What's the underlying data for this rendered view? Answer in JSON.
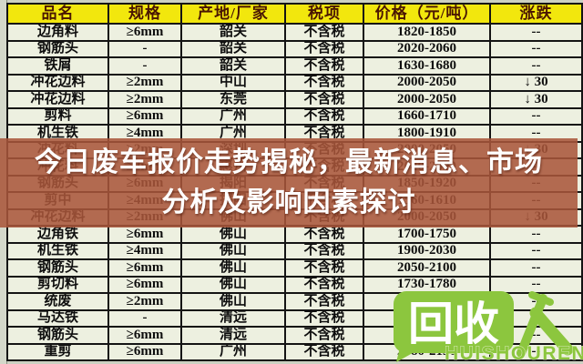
{
  "table": {
    "headers": [
      "品名",
      "规格",
      "产地/厂家",
      "税项",
      "价格（元/吨）",
      "涨跌"
    ],
    "rows": [
      [
        "边角料",
        "≥6mm",
        "韶关",
        "不含税",
        "1820-1850",
        "--"
      ],
      [
        "钢筋头",
        "-",
        "韶关",
        "不含税",
        "2020-2060",
        "--"
      ],
      [
        "铁屑",
        "-",
        "韶关",
        "不含税",
        "1630-1680",
        "--"
      ],
      [
        "冲花边料",
        "≥2mm",
        "中山",
        "不含税",
        "2000-2050",
        "↓ 30"
      ],
      [
        "冲花边料",
        "≥2mm",
        "东莞",
        "不含税",
        "2000-2050",
        "↓ 30"
      ],
      [
        "剪料",
        "≥6mm",
        "广州",
        "不含税",
        "1660-1710",
        "--"
      ],
      [
        "机生铁",
        "≥4mm",
        "广州",
        "不含税",
        "1800-1910",
        "--"
      ],
      [
        "冲花料",
        "≥2mm",
        "深圳",
        "不含税",
        "2000-2050",
        "↓ 30"
      ],
      [
        "冲花料",
        "≥2mm",
        "惠州",
        "不含税",
        "2040-2090",
        "--"
      ],
      [
        "钢筋头",
        "≥6mm",
        "揭阳",
        "不含税",
        "1850-1920",
        "--"
      ],
      [
        "剪中",
        "≥4mm",
        "揭阳",
        "不含税",
        "1560-1610",
        "--"
      ],
      [
        "冲花边料",
        "≥2mm",
        "佛山",
        "不含税",
        "2000-2050",
        "↓ 30"
      ],
      [
        "边角铁",
        "≥6mm",
        "佛山",
        "不含税",
        "1700-1750",
        "--"
      ],
      [
        "机生铁",
        "≥4mm",
        "佛山",
        "不含税",
        "1900-2030",
        "--"
      ],
      [
        "钢筋头",
        "≥6mm",
        "佛山",
        "不含税",
        "2050-2100",
        "--"
      ],
      [
        "剪切料",
        "≥6mm",
        "佛山",
        "不含税",
        "1730-1780",
        "--"
      ],
      [
        "统废",
        "≥2mm",
        "佛山",
        "不含税",
        "1350-1400",
        "--"
      ],
      [
        "马达铁",
        "-",
        "清远",
        "不含税",
        "2000-2050",
        "--"
      ],
      [
        "钢筋头",
        "≥6mm",
        "清远",
        "不含税",
        "2050-2100",
        "--"
      ],
      [
        "重剪",
        "≥6mm",
        "广州",
        "不含税",
        "2080-2130",
        "--"
      ]
    ]
  },
  "banner": {
    "line1": "今日废车报价走势揭秘，最新消息、市场",
    "line2": "分析及影响因素探讨"
  },
  "logo": {
    "bubble_text": "回收",
    "person_glyph": "人",
    "caption": "HUISHOUREN"
  },
  "colors": {
    "header_bg": "#f2e70d",
    "header_text": "#4a1602",
    "cell_bg": "#edf0e0",
    "banner_bg": "#a9563b",
    "logo_green": "#8cc63e",
    "banner_text": "#ffffff"
  }
}
